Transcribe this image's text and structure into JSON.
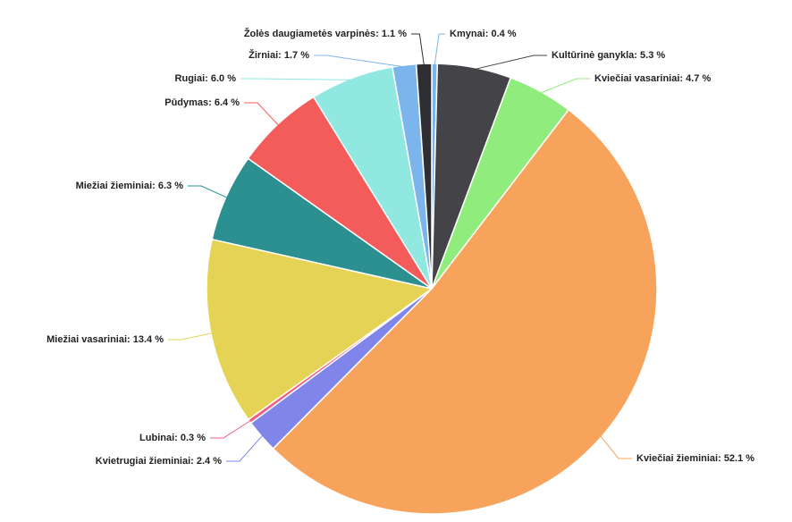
{
  "chart_data": {
    "type": "pie",
    "labels": [
      "Kmynai: 0.4 %",
      "Kultūrinė ganykla: 5.3 %",
      "Kviečiai vasariniai: 4.7 %",
      "Kviečiai žieminiai: 52.1 %",
      "Kvietrugiai žieminiai: 2.4 %",
      "Lubinai: 0.3 %",
      "Miežiai vasariniai: 13.4 %",
      "Miežiai žieminiai: 6.3 %",
      "Pūdymas: 6.4 %",
      "Rugiai: 6.0 %",
      "Žirniai: 1.7 %",
      "Žolės daugiametės varpinės: 1.1 %"
    ],
    "values": [
      0.4,
      5.3,
      4.7,
      52.1,
      2.4,
      0.3,
      13.4,
      6.3,
      6.4,
      6.0,
      1.7,
      1.1
    ],
    "colors": [
      "#7cb5ec",
      "#434348",
      "#90ed7d",
      "#f7a35c",
      "#8085e9",
      "#f15c80",
      "#e4d354",
      "#2b908f",
      "#f45b5b",
      "#91e8e1",
      "#7cb5ec",
      "#2f2f33"
    ]
  }
}
